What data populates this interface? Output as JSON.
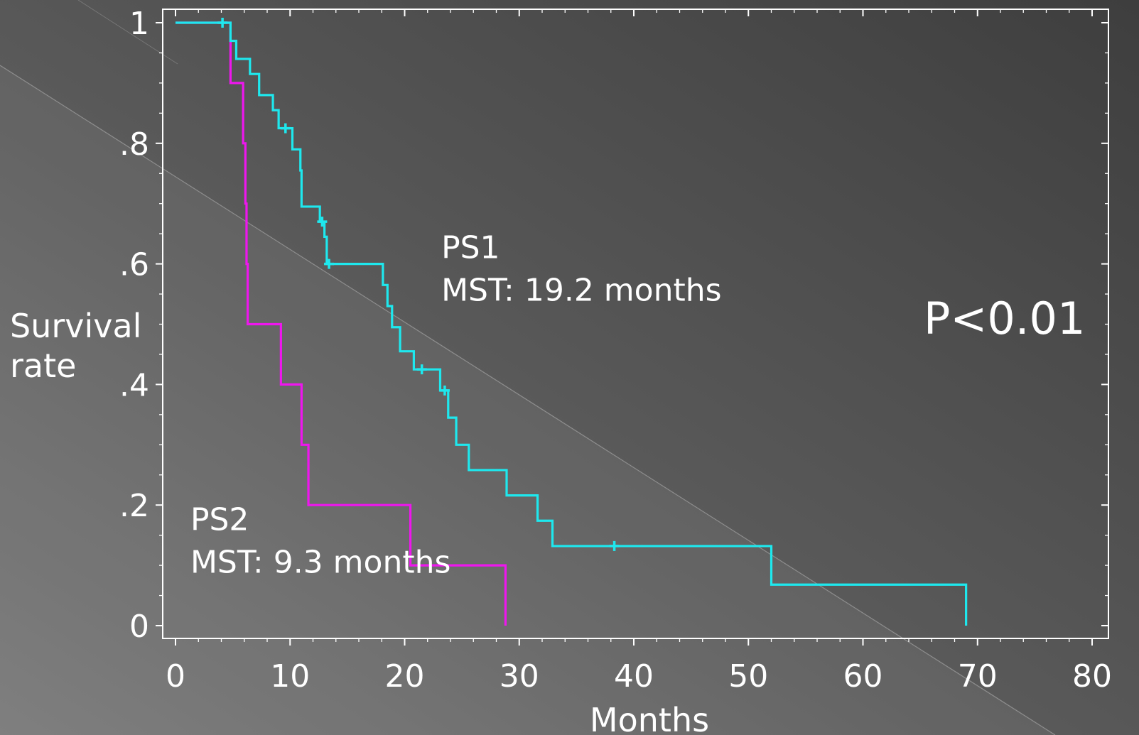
{
  "chart_data": {
    "type": "line",
    "title": "",
    "xlabel": "Months",
    "ylabel_lines": [
      "Survival",
      "rate"
    ],
    "xlim": [
      0,
      80
    ],
    "ylim": [
      0,
      1
    ],
    "x_ticks": [
      {
        "value": 0,
        "label": "0"
      },
      {
        "value": 10,
        "label": "10"
      },
      {
        "value": 20,
        "label": "20"
      },
      {
        "value": 30,
        "label": "30"
      },
      {
        "value": 40,
        "label": "40"
      },
      {
        "value": 50,
        "label": "50"
      },
      {
        "value": 60,
        "label": "60"
      },
      {
        "value": 70,
        "label": "70"
      },
      {
        "value": 80,
        "label": "80"
      }
    ],
    "y_ticks": [
      {
        "value": 0,
        "label": "0"
      },
      {
        "value": 0.2,
        "label": ".2"
      },
      {
        "value": 0.4,
        "label": ".4"
      },
      {
        "value": 0.6,
        "label": ".6"
      },
      {
        "value": 0.8,
        "label": ".8"
      },
      {
        "value": 1,
        "label": "1"
      }
    ],
    "grid": false,
    "step": true,
    "series": [
      {
        "name": "PS1",
        "color": "#1ee8ee",
        "points": [
          [
            0,
            1.0
          ],
          [
            4.8,
            0.97
          ],
          [
            5.3,
            0.94
          ],
          [
            6.5,
            0.915
          ],
          [
            7.3,
            0.88
          ],
          [
            8.5,
            0.855
          ],
          [
            9.0,
            0.825
          ],
          [
            10.2,
            0.79
          ],
          [
            10.9,
            0.755
          ],
          [
            11.0,
            0.695
          ],
          [
            12.6,
            0.67
          ],
          [
            13.0,
            0.645
          ],
          [
            13.2,
            0.6
          ],
          [
            18.1,
            0.565
          ],
          [
            18.5,
            0.53
          ],
          [
            18.9,
            0.495
          ],
          [
            19.6,
            0.455
          ],
          [
            20.8,
            0.425
          ],
          [
            23.1,
            0.39
          ],
          [
            23.8,
            0.345
          ],
          [
            24.5,
            0.3
          ],
          [
            25.6,
            0.258
          ],
          [
            28.9,
            0.216
          ],
          [
            31.6,
            0.174
          ],
          [
            32.9,
            0.132
          ],
          [
            52.0,
            0.068
          ],
          [
            69.0,
            0.0
          ]
        ],
        "censored": [
          [
            4.1,
            1.0
          ],
          [
            9.6,
            0.825
          ],
          [
            12.8,
            0.67
          ],
          [
            13.4,
            0.6
          ],
          [
            21.5,
            0.425
          ],
          [
            23.5,
            0.39
          ],
          [
            38.3,
            0.132
          ]
        ]
      },
      {
        "name": "PS2",
        "color": "#ee16ee",
        "points": [
          [
            0,
            1.0
          ],
          [
            4.8,
            0.9
          ],
          [
            5.9,
            0.8
          ],
          [
            6.1,
            0.7
          ],
          [
            6.2,
            0.6
          ],
          [
            6.3,
            0.5
          ],
          [
            9.2,
            0.4
          ],
          [
            11.0,
            0.3
          ],
          [
            11.6,
            0.2
          ],
          [
            20.5,
            0.1
          ],
          [
            28.8,
            0.0
          ]
        ],
        "censored": []
      }
    ],
    "annotations": [
      {
        "lines": [
          "PS1",
          "MST: 19.2 months"
        ],
        "x": 23.2,
        "y": 0.6
      },
      {
        "lines": [
          "PS2",
          "MST: 9.3 months"
        ],
        "x": 1.3,
        "y": 0.17
      }
    ],
    "p_value": "P<0.01"
  }
}
